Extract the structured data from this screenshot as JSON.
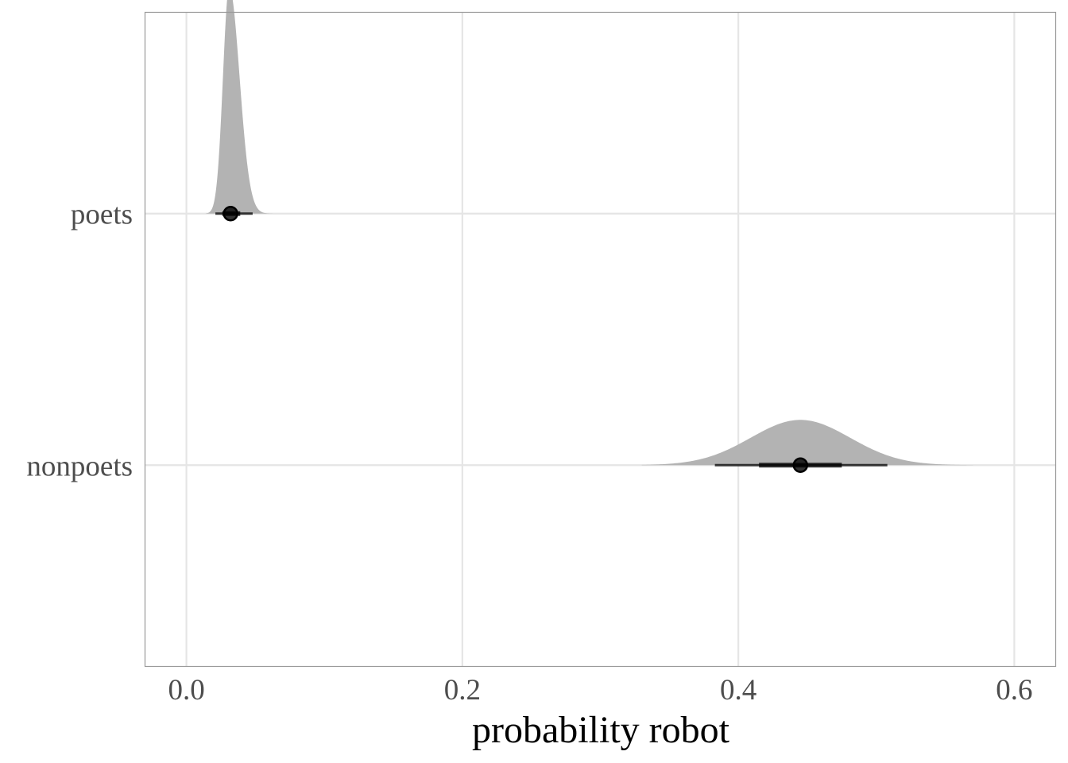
{
  "chart_data": {
    "type": "halfeye",
    "xlabel": "probability robot",
    "ylabel": "",
    "xlim": [
      -0.03,
      0.63
    ],
    "x_ticks": [
      0.0,
      0.2,
      0.4,
      0.6
    ],
    "x_tick_labels": [
      "0.0",
      "0.2",
      "0.4",
      "0.6"
    ],
    "grid": true,
    "categories": [
      "poets",
      "nonpoets"
    ],
    "distributions": [
      {
        "category": "poets",
        "density": {
          "mode": 0.031,
          "sd_left": 0.0045,
          "sd_right": 0.0075,
          "min": 0.014,
          "max": 0.072,
          "relative_height": 1.0
        },
        "point": 0.032,
        "interval_66": [
          0.026,
          0.039
        ],
        "interval_95": [
          0.021,
          0.048
        ]
      },
      {
        "category": "nonpoets",
        "density": {
          "mode": 0.445,
          "sd_left": 0.036,
          "sd_right": 0.036,
          "min": 0.33,
          "max": 0.57,
          "relative_height": 0.2
        },
        "point": 0.445,
        "interval_66": [
          0.415,
          0.475
        ],
        "interval_95": [
          0.383,
          0.508
        ]
      }
    ],
    "colors": {
      "density_fill": "#b3b3b3",
      "interval": "#000000",
      "point": "#000000",
      "grid": "#e5e5e5",
      "panel_border": "#999999"
    }
  }
}
